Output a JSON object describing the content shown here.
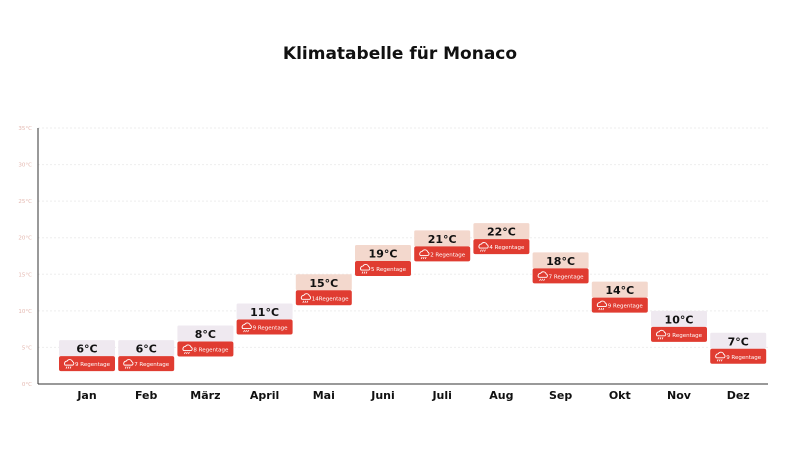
{
  "chart_data": {
    "type": "bar",
    "title": "Klimatabelle für Monaco",
    "categories": [
      "Jan",
      "Feb",
      "März",
      "April",
      "Mai",
      "Juni",
      "Juli",
      "Aug",
      "Sep",
      "Okt",
      "Nov",
      "Dez"
    ],
    "series": [
      {
        "values": [
          6,
          6,
          8,
          11,
          15,
          19,
          21,
          22,
          18,
          14,
          10,
          7
        ]
      }
    ],
    "temperature_labels": [
      "6°C",
      "6°C",
      "8°C",
      "11°C",
      "15°C",
      "19°C",
      "21°C",
      "22°C",
      "18°C",
      "14°C",
      "10°C",
      "7°C"
    ],
    "rain_labels": [
      "9 Regentage",
      "7 Regentage",
      "8 Regentage",
      "9 Regentage",
      "14Regentage",
      "5 Regentage",
      "2 Regentage",
      "4 Regentage",
      "7 Regentage",
      "9 Regentage",
      "9 Regentage",
      "9 Regentage"
    ],
    "y_ticks": [
      "0°C",
      "5°C",
      "10°C",
      "15°C",
      "20°C",
      "25°C",
      "30°C",
      "35°C"
    ],
    "ylim": [
      0,
      35
    ],
    "grid": true,
    "icon": "rain-cloud-icon",
    "colors": {
      "rain": "#e03c31",
      "cold_box": "#efe9f0",
      "warm_box": "#f3d8cd",
      "tick": "#e4b8b0"
    }
  }
}
